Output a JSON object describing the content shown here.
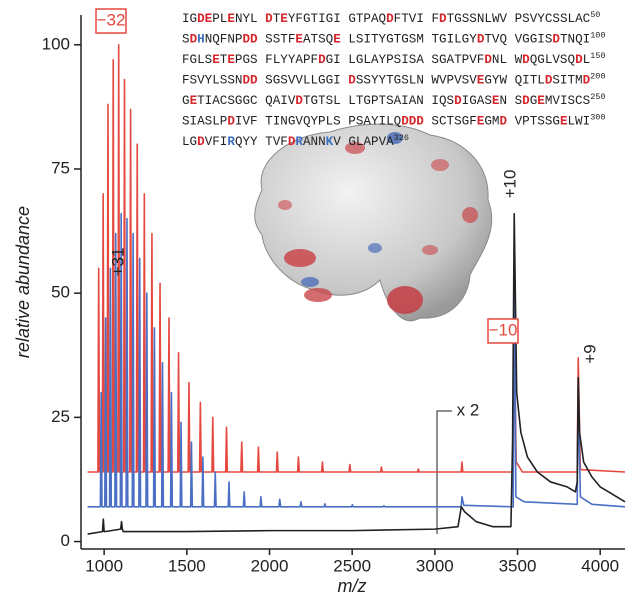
{
  "chart_data": {
    "type": "line",
    "xlabel": "m/z",
    "ylabel": "relative abundance",
    "xlim": [
      860,
      4150
    ],
    "ylim": [
      -1.5,
      106
    ],
    "xticks": [
      1000,
      1500,
      2000,
      2500,
      3000,
      3500,
      4000
    ],
    "yticks": [
      0,
      25,
      50,
      75,
      100
    ],
    "series": [
      {
        "color": "#e5483f",
        "x": [
          900,
          962,
          967,
          972,
          989,
          994,
          999,
          1018,
          1023,
          1028,
          1050,
          1055,
          1060,
          1083,
          1088,
          1093,
          1118,
          1123,
          1128,
          1155,
          1160,
          1165,
          1195,
          1200,
          1205,
          1238,
          1243,
          1248,
          1284,
          1289,
          1294,
          1333,
          1338,
          1343,
          1387,
          1392,
          1397,
          1445,
          1450,
          1455,
          1508,
          1513,
          1518,
          1577,
          1582,
          1587,
          1652,
          1657,
          1662,
          1735,
          1740,
          1745,
          1827,
          1832,
          1837,
          1928,
          1933,
          1938,
          2042,
          2047,
          2052,
          2170,
          2175,
          2180,
          2315,
          2320,
          2325,
          2481,
          2486,
          2491,
          2672,
          2677,
          2682,
          2895,
          2900,
          2905,
          3159,
          3164,
          3169,
          3474,
          3480,
          3492,
          3530,
          3861,
          3867,
          3880,
          4150
        ],
        "values": [
          14,
          14,
          55,
          14,
          14,
          70,
          14,
          14,
          88,
          14,
          14,
          97,
          14,
          14,
          100,
          14,
          14,
          93,
          14,
          14,
          87,
          14,
          14,
          80,
          14,
          14,
          70,
          14,
          14,
          62,
          14,
          14,
          52,
          14,
          14,
          45,
          14,
          14,
          38,
          14,
          14,
          32,
          14,
          14,
          28,
          14,
          14,
          25,
          14,
          14,
          23,
          14,
          14,
          20,
          14,
          14,
          19,
          14,
          14,
          18,
          14,
          14,
          17,
          14,
          14,
          16,
          14,
          14,
          15.5,
          14,
          14,
          15,
          14,
          14,
          14.6,
          14,
          14,
          16,
          14,
          14,
          44,
          16,
          14,
          14,
          37,
          14.5,
          14
        ]
      },
      {
        "color": "#4a6fc4",
        "x": [
          900,
          977,
          982,
          987,
          1004,
          1009,
          1014,
          1033,
          1038,
          1043,
          1065,
          1070,
          1075,
          1098,
          1103,
          1108,
          1133,
          1138,
          1143,
          1170,
          1175,
          1180,
          1210,
          1215,
          1220,
          1253,
          1258,
          1263,
          1299,
          1304,
          1309,
          1348,
          1353,
          1358,
          1402,
          1407,
          1412,
          1460,
          1465,
          1470,
          1523,
          1528,
          1533,
          1592,
          1597,
          1602,
          1667,
          1672,
          1677,
          1750,
          1755,
          1760,
          1842,
          1847,
          1852,
          1943,
          1948,
          1953,
          2057,
          2062,
          2067,
          2185,
          2190,
          2195,
          2330,
          2335,
          2340,
          2496,
          2501,
          2506,
          2687,
          2692,
          2697,
          3159,
          3164,
          3175,
          3474,
          3481,
          3490,
          3540,
          3861,
          3867,
          3880,
          3950,
          4150
        ],
        "values": [
          7,
          7,
          30,
          7,
          7,
          45,
          7,
          7,
          55,
          7,
          7,
          62,
          7,
          7,
          66,
          7,
          7,
          65,
          7,
          7,
          62,
          7,
          7,
          57,
          7,
          7,
          50,
          7,
          7,
          43,
          7,
          7,
          36,
          7,
          7,
          30,
          7,
          7,
          24,
          7,
          7,
          20,
          7,
          7,
          17,
          7,
          7,
          14,
          7,
          7,
          12,
          7,
          7,
          10,
          7,
          7,
          9,
          7,
          7,
          8.5,
          7,
          7,
          8,
          7,
          7,
          7.6,
          7,
          7,
          7.4,
          7,
          7,
          7.2,
          7,
          7,
          9,
          7.3,
          7,
          58,
          9,
          8,
          7.5,
          31,
          9,
          7.5,
          7
        ]
      },
      {
        "color": "#222222",
        "x": [
          900,
          990,
          995,
          1000,
          1005,
          1100,
          1105,
          1110,
          1115,
          1500,
          2000,
          2500,
          3000,
          3140,
          3160,
          3180,
          3250,
          3350,
          3460,
          3470,
          3480,
          3495,
          3520,
          3560,
          3620,
          3700,
          3800,
          3850,
          3861,
          3867,
          3875,
          3900,
          3950,
          4000,
          4050,
          4100,
          4150
        ],
        "values": [
          1.5,
          2,
          4.5,
          2,
          2,
          2.5,
          4,
          2.5,
          2,
          2,
          2.2,
          2.2,
          2.5,
          3,
          7,
          6,
          4,
          3,
          3,
          20,
          66,
          30,
          22,
          17,
          14,
          12,
          11,
          10,
          12,
          33,
          22,
          16,
          13,
          11,
          10,
          9,
          8
        ]
      }
    ],
    "annotations": [
      {
        "text": "−32",
        "color": "#e5483f",
        "boxed": true
      },
      {
        "text": "+31"
      },
      {
        "text": "+10"
      },
      {
        "text": "−10",
        "color": "#e5483f",
        "boxed": true
      },
      {
        "text": "+9"
      },
      {
        "text": "x 2"
      }
    ],
    "sequence": [
      {
        "segments": [
          {
            "text": "IG"
          },
          {
            "text": "DE",
            "color": "#d7262b"
          },
          {
            "text": "PL"
          },
          {
            "text": "E",
            "color": "#d7262b"
          },
          {
            "text": "NYL "
          },
          {
            "text": "D",
            "color": "#d7262b"
          },
          {
            "text": "T"
          },
          {
            "text": "E",
            "color": "#d7262b"
          },
          {
            "text": "YFGTIGI GTPAQ"
          },
          {
            "text": "D",
            "color": "#d7262b"
          },
          {
            "text": "FTVI F"
          },
          {
            "text": "D",
            "color": "#d7262b"
          },
          {
            "text": "TGSSNLWV PSVYCSSLAC"
          }
        ],
        "number": "50"
      },
      {
        "segments": [
          {
            "text": "S"
          },
          {
            "text": "D",
            "color": "#d7262b"
          },
          {
            "text": "H",
            "color": "#3d6fc2"
          },
          {
            "text": "NQFNP"
          },
          {
            "text": "DD",
            "color": "#d7262b"
          },
          {
            "text": " SSTF"
          },
          {
            "text": "E",
            "color": "#d7262b"
          },
          {
            "text": "ATSQ"
          },
          {
            "text": "E",
            "color": "#d7262b"
          },
          {
            "text": " LSITYGTGSM TGILGY"
          },
          {
            "text": "D",
            "color": "#d7262b"
          },
          {
            "text": "TVQ VGGIS"
          },
          {
            "text": "D",
            "color": "#d7262b"
          },
          {
            "text": "TNQI"
          }
        ],
        "number": "100"
      },
      {
        "segments": [
          {
            "text": "FGLS"
          },
          {
            "text": "E",
            "color": "#d7262b"
          },
          {
            "text": "T"
          },
          {
            "text": "E",
            "color": "#d7262b"
          },
          {
            "text": "PGS FLYYAPF"
          },
          {
            "text": "D",
            "color": "#d7262b"
          },
          {
            "text": "GI LGLAYPSISA SGATPVF"
          },
          {
            "text": "D",
            "color": "#d7262b"
          },
          {
            "text": "NL W"
          },
          {
            "text": "D",
            "color": "#d7262b"
          },
          {
            "text": "QGLVSQ"
          },
          {
            "text": "D",
            "color": "#d7262b"
          },
          {
            "text": "L"
          }
        ],
        "number": "150"
      },
      {
        "segments": [
          {
            "text": "FSVYLSSN"
          },
          {
            "text": "DD",
            "color": "#d7262b"
          },
          {
            "text": " SGSVVLLGGI "
          },
          {
            "text": "D",
            "color": "#d7262b"
          },
          {
            "text": "SSYYTGSLN WVPVSV"
          },
          {
            "text": "E",
            "color": "#d7262b"
          },
          {
            "text": "GYW QITL"
          },
          {
            "text": "D",
            "color": "#d7262b"
          },
          {
            "text": "SITM"
          },
          {
            "text": "D",
            "color": "#d7262b"
          }
        ],
        "number": "200"
      },
      {
        "segments": [
          {
            "text": "G"
          },
          {
            "text": "E",
            "color": "#d7262b"
          },
          {
            "text": "TIACSGGC QAIV"
          },
          {
            "text": "D",
            "color": "#d7262b"
          },
          {
            "text": "TGTSL LTGPTSAIAN IQS"
          },
          {
            "text": "D",
            "color": "#d7262b"
          },
          {
            "text": "IGAS"
          },
          {
            "text": "E",
            "color": "#d7262b"
          },
          {
            "text": "N S"
          },
          {
            "text": "D",
            "color": "#d7262b"
          },
          {
            "text": "G"
          },
          {
            "text": "E",
            "color": "#d7262b"
          },
          {
            "text": "MVISCS"
          }
        ],
        "number": "250"
      },
      {
        "segments": [
          {
            "text": "SIASLP"
          },
          {
            "text": "D",
            "color": "#d7262b"
          },
          {
            "text": "IVF TINGVQYPLS PSAYILQ"
          },
          {
            "text": "DDD",
            "color": "#d7262b"
          },
          {
            "text": " SCTSGF"
          },
          {
            "text": "E",
            "color": "#d7262b"
          },
          {
            "text": "GM"
          },
          {
            "text": "D",
            "color": "#d7262b"
          },
          {
            "text": " VPTSSG"
          },
          {
            "text": "E",
            "color": "#d7262b"
          },
          {
            "text": "LWI"
          }
        ],
        "number": "300"
      },
      {
        "segments": [
          {
            "text": "LG"
          },
          {
            "text": "D",
            "color": "#d7262b"
          },
          {
            "text": "VFI"
          },
          {
            "text": "R",
            "color": "#3d6fc2"
          },
          {
            "text": "QYY TVF"
          },
          {
            "text": "D",
            "color": "#d7262b"
          },
          {
            "text": "R",
            "color": "#3d6fc2"
          },
          {
            "text": "ANN"
          },
          {
            "text": "K",
            "color": "#3d6fc2"
          },
          {
            "text": "V GLAPVA"
          }
        ],
        "number": "326"
      }
    ]
  }
}
